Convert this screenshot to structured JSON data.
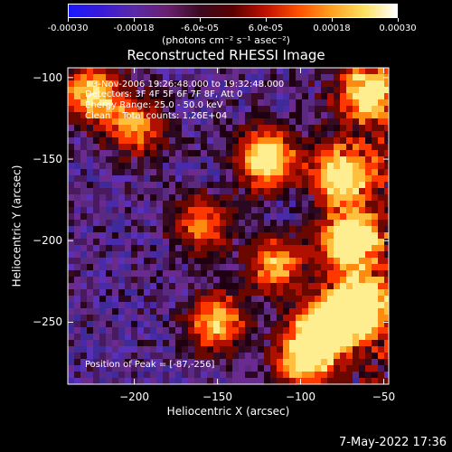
{
  "chart_data": {
    "type": "heatmap",
    "title": "Reconstructed RHESSI Image",
    "colorbar": {
      "range": [
        -0.0003,
        0.0003
      ],
      "ticks": [
        "-0.00030",
        "-0.00018",
        "-6.0e-05",
        "6.0e-05",
        "0.00018",
        "0.00030"
      ],
      "label": "(photons cm⁻² s⁻¹ asec⁻²)"
    },
    "xlabel": "Heliocentric X (arcsec)",
    "ylabel": "Heliocentric Y (arcsec)",
    "xlim": [
      -240,
      -47
    ],
    "ylim": [
      -288,
      -94
    ],
    "xticks": [
      -200,
      -150,
      -100,
      -50
    ],
    "yticks": [
      -100,
      -150,
      -200,
      -250
    ],
    "xtick_labels": [
      "−200",
      "−150",
      "−100",
      "−50"
    ],
    "ytick_labels": [
      "−100",
      "−150",
      "−200",
      "−250"
    ],
    "info_lines": [
      "3-Nov-2006 19:26:48.000 to 19:32:48.000",
      "Detectors: 3F 4F 5F 6F 7F 8F, Att 0",
      "Energy Range: 25.0 - 50.0 keV",
      "Clean    Total counts: 1.26E+04"
    ],
    "peak_label": "Position of Peak = [-87,-256]",
    "peak_position": [
      -87,
      -256
    ],
    "bright_regions": [
      {
        "x": -70,
        "y": -200,
        "level": 0.95
      },
      {
        "x": -65,
        "y": -240,
        "level": 1.0
      },
      {
        "x": -87,
        "y": -256,
        "level": 1.0
      },
      {
        "x": -120,
        "y": -150,
        "level": 0.85
      },
      {
        "x": -75,
        "y": -160,
        "level": 0.8
      },
      {
        "x": -225,
        "y": -110,
        "level": 0.7
      },
      {
        "x": -150,
        "y": -250,
        "level": 0.65
      },
      {
        "x": -115,
        "y": -215,
        "level": 0.6
      },
      {
        "x": -200,
        "y": -130,
        "level": 0.55
      },
      {
        "x": -160,
        "y": -190,
        "level": 0.5
      },
      {
        "x": -60,
        "y": -110,
        "level": 0.7
      },
      {
        "x": -100,
        "y": -275,
        "level": 0.6
      }
    ]
  },
  "datestamp": "7-May-2022 17:36"
}
